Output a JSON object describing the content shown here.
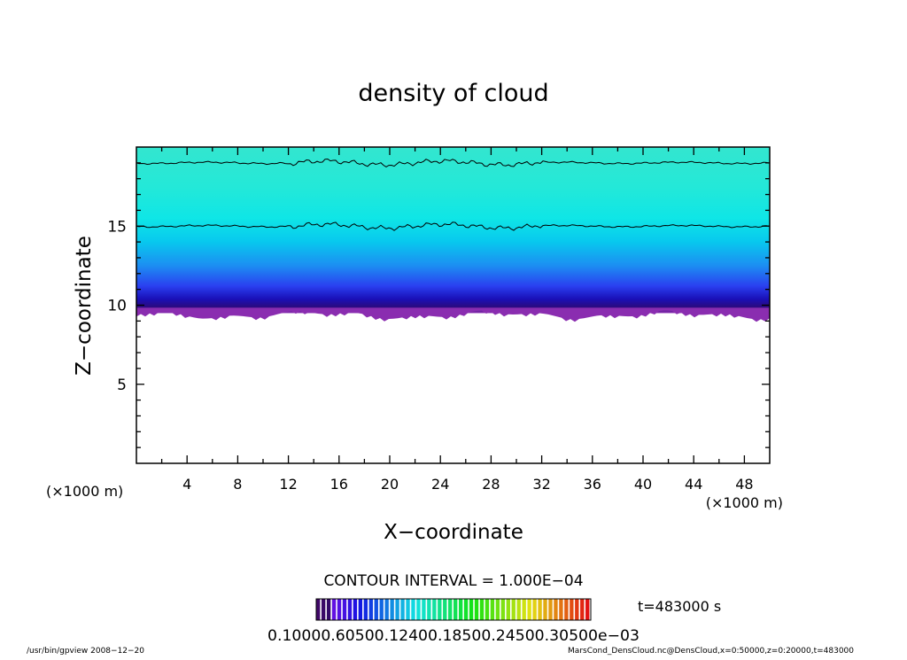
{
  "chart_data": {
    "type": "heatmap",
    "title": "density of cloud",
    "xlabel": "X−coordinate",
    "ylabel": "Z−coordinate",
    "x_unit_left": "(×1000 m)",
    "x_unit_right": "(×1000 m)",
    "xlim": [
      0,
      50
    ],
    "ylim": [
      0,
      20
    ],
    "x_ticks": [
      4,
      8,
      12,
      16,
      20,
      24,
      28,
      32,
      36,
      40,
      44,
      48
    ],
    "y_ticks": [
      5,
      10,
      15
    ],
    "cloud_base_z": 9.5,
    "contour_levels_z": [
      15,
      19
    ],
    "profile": [
      {
        "z": 20,
        "color": "#33e6cf"
      },
      {
        "z": 17.5,
        "color": "#24e8d8"
      },
      {
        "z": 15.5,
        "color": "#0fe6e6"
      },
      {
        "z": 14,
        "color": "#08c8ee"
      },
      {
        "z": 12.5,
        "color": "#1c8ef2"
      },
      {
        "z": 11.2,
        "color": "#2a3ff0"
      },
      {
        "z": 10.4,
        "color": "#1a10b8"
      },
      {
        "z": 9.9,
        "color": "#2a0a80"
      },
      {
        "z": 9.5,
        "color": "#8a2db0"
      }
    ]
  },
  "contour_interval": "CONTOUR INTERVAL = 1.000E−04",
  "colorbar_labels": "0.10000.60500.12400.18500.24500.30500e−03",
  "time_label": "t=483000 s",
  "footer_left": "/usr/bin/gpview   2008−12−20",
  "footer_right": "MarsCond_DensCloud.nc@DensCloud,x=0:50000,z=0:20000,t=483000"
}
